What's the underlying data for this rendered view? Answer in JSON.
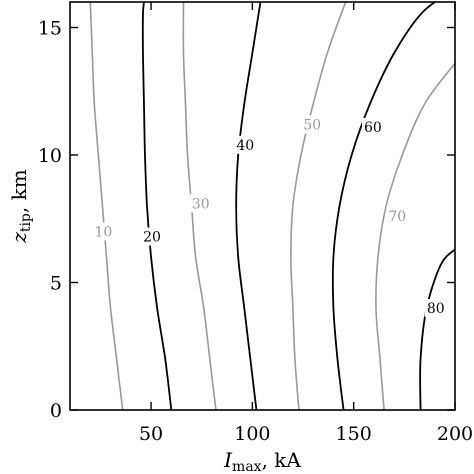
{
  "chart_data": {
    "type": "contour",
    "title": "",
    "xlabel_main": "I",
    "xlabel_sub": "max",
    "xlabel_unit": ", kA",
    "ylabel_main": "z",
    "ylabel_sub": "tip",
    "ylabel_unit": ", km",
    "xlim": [
      10,
      200
    ],
    "ylim": [
      0,
      16
    ],
    "xticks": [
      50,
      100,
      150,
      200
    ],
    "yticks": [
      0,
      5,
      10,
      15
    ],
    "grid": false,
    "colors": {
      "major": "#000000",
      "minor": "#999999"
    },
    "contours": [
      {
        "level": "10",
        "style": "minor",
        "points": [
          [
            36,
            0
          ],
          [
            33,
            2
          ],
          [
            30,
            4
          ],
          [
            28,
            6
          ],
          [
            26,
            8
          ],
          [
            24,
            10
          ],
          [
            22,
            12
          ],
          [
            21,
            14
          ],
          [
            20,
            16
          ]
        ],
        "label_at": [
          26.5,
          7.0
        ]
      },
      {
        "level": "20",
        "style": "major",
        "points": [
          [
            60,
            0
          ],
          [
            57,
            2
          ],
          [
            53,
            4
          ],
          [
            50,
            6
          ],
          [
            48,
            8
          ],
          [
            47,
            10
          ],
          [
            46.5,
            12
          ],
          [
            46,
            14
          ],
          [
            46,
            15.5
          ],
          [
            46.5,
            16
          ]
        ],
        "label_at": [
          50.5,
          6.8
        ]
      },
      {
        "level": "30",
        "style": "minor",
        "points": [
          [
            82,
            0
          ],
          [
            79,
            2
          ],
          [
            76,
            4
          ],
          [
            72,
            6
          ],
          [
            70,
            8
          ],
          [
            68,
            10
          ],
          [
            67,
            12
          ],
          [
            66,
            14
          ],
          [
            66,
            16
          ]
        ],
        "label_at": [
          74.5,
          8.1
        ]
      },
      {
        "level": "40",
        "style": "major",
        "points": [
          [
            102,
            0
          ],
          [
            99,
            2
          ],
          [
            96,
            4
          ],
          [
            93,
            6
          ],
          [
            92,
            8
          ],
          [
            93,
            10
          ],
          [
            96,
            12
          ],
          [
            100,
            14
          ],
          [
            104,
            16
          ]
        ],
        "label_at": [
          96.5,
          10.4
        ]
      },
      {
        "level": "50",
        "style": "minor",
        "points": [
          [
            123,
            0
          ],
          [
            121,
            2
          ],
          [
            120,
            4
          ],
          [
            119,
            6
          ],
          [
            120,
            8
          ],
          [
            124,
            10
          ],
          [
            130,
            12
          ],
          [
            137,
            14
          ],
          [
            146,
            16
          ]
        ],
        "label_at": [
          129.5,
          11.2
        ]
      },
      {
        "level": "60",
        "style": "major",
        "points": [
          [
            145,
            0
          ],
          [
            142,
            2
          ],
          [
            140,
            4
          ],
          [
            140,
            6
          ],
          [
            143,
            8
          ],
          [
            149,
            10
          ],
          [
            158,
            12
          ],
          [
            170,
            14
          ],
          [
            184,
            15.6
          ],
          [
            200,
            16.5
          ]
        ],
        "label_at": [
          159.5,
          11.1
        ]
      },
      {
        "level": "70",
        "style": "minor",
        "points": [
          [
            165,
            0
          ],
          [
            163,
            2
          ],
          [
            161,
            4
          ],
          [
            162,
            6
          ],
          [
            166,
            8
          ],
          [
            174,
            10
          ],
          [
            185,
            12
          ],
          [
            200,
            13.6
          ]
        ],
        "label_at": [
          171.5,
          7.6
        ]
      },
      {
        "level": "80",
        "style": "major",
        "points": [
          [
            183,
            0
          ],
          [
            183,
            2
          ],
          [
            186,
            4
          ],
          [
            193,
            5.7
          ],
          [
            200,
            6.3
          ]
        ],
        "label_at": [
          190.5,
          4.0
        ]
      }
    ]
  }
}
